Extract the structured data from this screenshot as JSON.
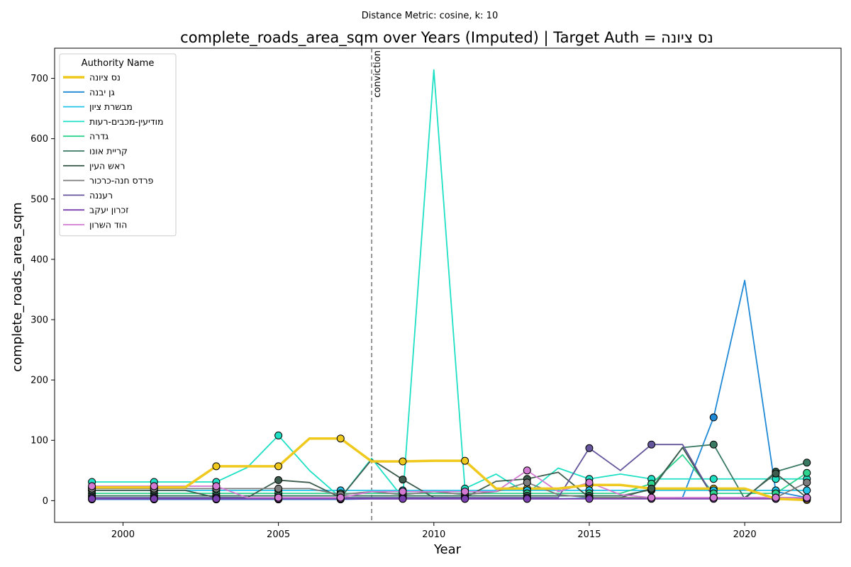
{
  "chart_data": {
    "type": "line",
    "suptitle": "Distance Metric: cosine, k: 10",
    "title": "complete_roads_area_sqm over Years (Imputed) | Target Auth = נס ציונה",
    "xlabel": "Year",
    "ylabel": "complete_roads_area_sqm",
    "xlim": [
      1997.8,
      2023.1
    ],
    "ylim": [
      -36,
      750
    ],
    "xticks": [
      2000,
      2005,
      2010,
      2015,
      2020
    ],
    "yticks": [
      0,
      100,
      200,
      300,
      400,
      500,
      600,
      700
    ],
    "grid": false,
    "legend": {
      "title": "Authority Name",
      "placement": "top-left"
    },
    "vline": {
      "x": 2008,
      "label": "conviction"
    },
    "x": [
      1999,
      2000,
      2001,
      2002,
      2003,
      2004,
      2005,
      2006,
      2007,
      2008,
      2009,
      2010,
      2011,
      2012,
      2013,
      2014,
      2015,
      2016,
      2017,
      2018,
      2019,
      2020,
      2021,
      2022
    ],
    "series": [
      {
        "name": "נס ציונה",
        "color": "#f0c91f",
        "width": 3.5,
        "target": true,
        "values": [
          22,
          22,
          22,
          22,
          57,
          57,
          57,
          103,
          103,
          65,
          65,
          66,
          66,
          20,
          20,
          20,
          26,
          26,
          20,
          20,
          20,
          20,
          3,
          1
        ]
      },
      {
        "name": "גן יבנה",
        "color": "#1f89d6",
        "width": 1.8,
        "values": [
          2,
          2,
          2,
          2,
          2,
          2,
          2,
          2,
          2,
          3,
          3,
          3,
          3,
          3,
          3,
          3,
          4,
          4,
          4,
          5,
          138,
          365,
          15,
          5
        ]
      },
      {
        "name": "מבשרת ציון",
        "color": "#21c4e8",
        "width": 1.8,
        "values": [
          17,
          17,
          17,
          17,
          17,
          17,
          17,
          17,
          17,
          17,
          17,
          17,
          17,
          17,
          17,
          17,
          17,
          17,
          17,
          17,
          17,
          17,
          17,
          17
        ]
      },
      {
        "name": "מודיעין-מכבים-רעות",
        "color": "#1ee0c4",
        "width": 1.8,
        "values": [
          31,
          31,
          31,
          31,
          31,
          55,
          108,
          50,
          5,
          70,
          5,
          714,
          20,
          44,
          12,
          54,
          36,
          44,
          36,
          36,
          36,
          36,
          36,
          36
        ]
      },
      {
        "name": "גדרה",
        "color": "#2ed38e",
        "width": 1.8,
        "values": [
          12,
          12,
          12,
          12,
          12,
          12,
          12,
          12,
          12,
          12,
          12,
          12,
          12,
          12,
          12,
          12,
          12,
          12,
          28,
          76,
          12,
          12,
          12,
          46
        ]
      },
      {
        "name": "קריית אונו",
        "color": "#3a7a62",
        "width": 1.8,
        "values": [
          8,
          8,
          8,
          8,
          8,
          8,
          8,
          8,
          8,
          8,
          8,
          8,
          8,
          8,
          8,
          8,
          8,
          8,
          18,
          88,
          93,
          3,
          48,
          63
        ]
      },
      {
        "name": "ראש העין",
        "color": "#3d5c4e",
        "width": 1.8,
        "values": [
          17,
          17,
          17,
          17,
          5,
          5,
          34,
          30,
          5,
          68,
          35,
          5,
          5,
          32,
          36,
          47,
          5,
          5,
          20,
          88,
          5,
          5,
          45,
          5
        ]
      },
      {
        "name": "פרדס חנה-כרכור",
        "color": "#7d7d7d",
        "width": 1.8,
        "values": [
          20,
          20,
          20,
          20,
          20,
          20,
          20,
          20,
          10,
          15,
          10,
          15,
          10,
          15,
          30,
          10,
          5,
          5,
          5,
          5,
          5,
          5,
          5,
          30
        ]
      },
      {
        "name": "רעננה",
        "color": "#64559c",
        "width": 1.8,
        "values": [
          5,
          5,
          5,
          5,
          5,
          5,
          5,
          5,
          5,
          5,
          5,
          5,
          5,
          5,
          5,
          5,
          87,
          50,
          93,
          93,
          5,
          5,
          5,
          5
        ]
      },
      {
        "name": "זכרון יעקב",
        "color": "#7a3fae",
        "width": 1.8,
        "values": [
          3,
          3,
          3,
          3,
          3,
          3,
          3,
          3,
          3,
          3,
          3,
          3,
          3,
          3,
          3,
          3,
          3,
          3,
          3,
          3,
          3,
          3,
          3,
          3
        ]
      },
      {
        "name": "הוד השרון",
        "color": "#d37ad3",
        "width": 1.8,
        "values": [
          24,
          24,
          24,
          24,
          24,
          5,
          5,
          5,
          5,
          15,
          15,
          15,
          15,
          15,
          50,
          15,
          30,
          10,
          5,
          5,
          5,
          5,
          5,
          5
        ]
      }
    ]
  }
}
